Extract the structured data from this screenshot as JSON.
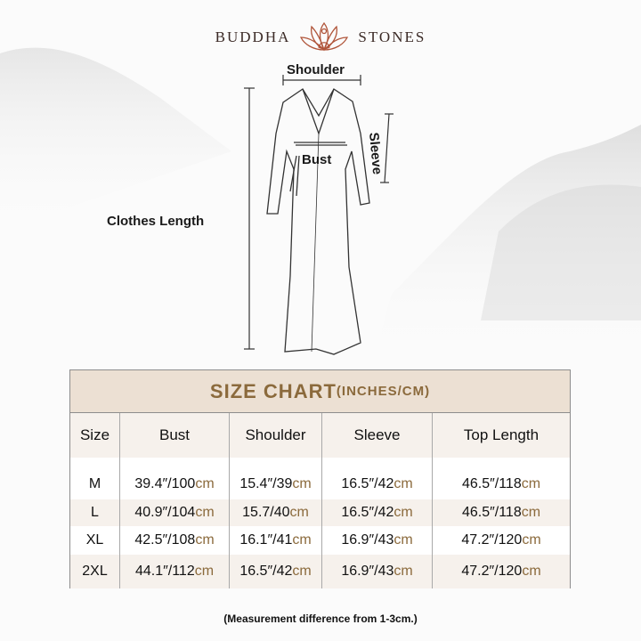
{
  "brand": {
    "left": "BUDDHA",
    "right": "STONES",
    "logo_icon": "lotus-meditation-icon",
    "logo_color": "#b0553a"
  },
  "diagram": {
    "shoulder": "Shoulder",
    "sleeve": "Sleeve",
    "bust": "Bust",
    "clothes_length": "Clothes Length"
  },
  "size_chart": {
    "title": "SIZE CHART",
    "title_unit": "(INCHES/CM)",
    "title_color": "#8b6a3c",
    "headers": [
      "Size",
      "Bust",
      "Shoulder",
      "Sleeve",
      "Top Length"
    ],
    "rows": [
      {
        "size": "M",
        "cells": [
          {
            "v": "39.4″/100",
            "u": "cm"
          },
          {
            "v": "15.4″/39",
            "u": "cm"
          },
          {
            "v": "16.5″/42",
            "u": "cm"
          },
          {
            "v": "46.5″/118",
            "u": "cm"
          }
        ]
      },
      {
        "size": "L",
        "cells": [
          {
            "v": "40.9″/104",
            "u": "cm"
          },
          {
            "v": "15.7/40",
            "u": "cm"
          },
          {
            "v": "16.5″/42",
            "u": "cm"
          },
          {
            "v": "46.5″/118",
            "u": "cm"
          }
        ]
      },
      {
        "size": "XL",
        "cells": [
          {
            "v": "42.5″/108",
            "u": "cm"
          },
          {
            "v": "16.1″/41",
            "u": "cm"
          },
          {
            "v": "16.9″/43",
            "u": "cm"
          },
          {
            "v": "47.2″/120",
            "u": "cm"
          }
        ]
      },
      {
        "size": "2XL",
        "cells": [
          {
            "v": "44.1″/112",
            "u": "cm"
          },
          {
            "v": "16.5″/42",
            "u": "cm"
          },
          {
            "v": "16.9″/43",
            "u": "cm"
          },
          {
            "v": "47.2″/120",
            "u": "cm"
          }
        ]
      }
    ]
  },
  "note": "(Measurement difference from 1-3cm.)"
}
